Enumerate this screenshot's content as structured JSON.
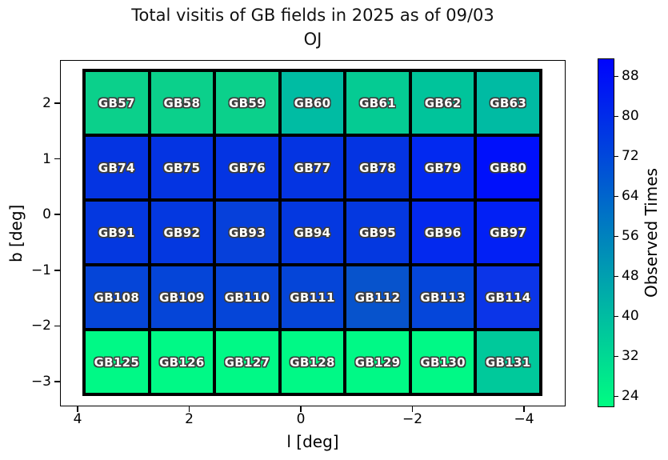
{
  "title": {
    "line1": "Total visitis of GB fields in 2025 as of 09/03",
    "line2": "OJ"
  },
  "chart_data": {
    "type": "heatmap",
    "xlabel": "l [deg]",
    "ylabel": "b [deg]",
    "x_axis": {
      "tick_labels": [
        "4",
        "2",
        "0",
        "−2",
        "−4"
      ],
      "tick_values": [
        4,
        2,
        0,
        -2,
        -4
      ],
      "direction": "reversed (positive l on left)"
    },
    "y_axis": {
      "tick_labels": [
        "2",
        "1",
        "0",
        "−1",
        "−2",
        "−3"
      ],
      "tick_values": [
        2,
        1,
        0,
        -1,
        -2,
        -3
      ]
    },
    "colorbar": {
      "label": "Observed Times",
      "ticks": [
        88,
        80,
        72,
        64,
        56,
        48,
        40,
        32,
        24
      ],
      "vmin": 21.8,
      "vmax": 91.6,
      "colormap": "winter_r",
      "color_low": "#00ff80",
      "color_high": "#0000ff"
    },
    "rows": [
      {
        "cells": [
          {
            "id": "GB57",
            "value": 34,
            "color": "#0bd08b"
          },
          {
            "id": "GB58",
            "value": 34,
            "color": "#0bd08b"
          },
          {
            "id": "GB59",
            "value": 34,
            "color": "#0bd08b"
          },
          {
            "id": "GB60",
            "value": 40,
            "color": "#00bca3"
          },
          {
            "id": "GB61",
            "value": 36,
            "color": "#05cb93"
          },
          {
            "id": "GB62",
            "value": 38,
            "color": "#00c49b"
          },
          {
            "id": "GB63",
            "value": 40,
            "color": "#00bba3"
          }
        ]
      },
      {
        "cells": [
          {
            "id": "GB74",
            "value": 78,
            "color": "#0434e2"
          },
          {
            "id": "GB75",
            "value": 78,
            "color": "#0434e2"
          },
          {
            "id": "GB76",
            "value": 78,
            "color": "#0434e2"
          },
          {
            "id": "GB77",
            "value": 78,
            "color": "#0434e2"
          },
          {
            "id": "GB78",
            "value": 78,
            "color": "#0434e2"
          },
          {
            "id": "GB79",
            "value": 81,
            "color": "#0229f0"
          },
          {
            "id": "GB80",
            "value": 89,
            "color": "#0010fb"
          }
        ]
      },
      {
        "cells": [
          {
            "id": "GB91",
            "value": 77,
            "color": "#0438e0"
          },
          {
            "id": "GB92",
            "value": 77,
            "color": "#0438e0"
          },
          {
            "id": "GB93",
            "value": 75,
            "color": "#0640da"
          },
          {
            "id": "GB94",
            "value": 77,
            "color": "#0438e0"
          },
          {
            "id": "GB95",
            "value": 77,
            "color": "#0438e0"
          },
          {
            "id": "GB96",
            "value": 81,
            "color": "#0329ee"
          },
          {
            "id": "GB97",
            "value": 84,
            "color": "#0220f5"
          }
        ]
      },
      {
        "cells": [
          {
            "id": "GB108",
            "value": 74,
            "color": "#0545d8"
          },
          {
            "id": "GB109",
            "value": 74,
            "color": "#0545d8"
          },
          {
            "id": "GB110",
            "value": 74,
            "color": "#0545d8"
          },
          {
            "id": "GB111",
            "value": 74,
            "color": "#0545d8"
          },
          {
            "id": "GB112",
            "value": 71,
            "color": "#0753cc"
          },
          {
            "id": "GB113",
            "value": 73,
            "color": "#0546da"
          },
          {
            "id": "GB114",
            "value": 79,
            "color": "#0b35e8"
          }
        ]
      },
      {
        "cells": [
          {
            "id": "GB125",
            "value": 23,
            "color": "#00f986"
          },
          {
            "id": "GB126",
            "value": 23,
            "color": "#00f986"
          },
          {
            "id": "GB127",
            "value": 23,
            "color": "#00f986"
          },
          {
            "id": "GB128",
            "value": 23,
            "color": "#00f986"
          },
          {
            "id": "GB129",
            "value": 23,
            "color": "#00f986"
          },
          {
            "id": "GB130",
            "value": 23,
            "color": "#00f986"
          },
          {
            "id": "GB131",
            "value": 38,
            "color": "#00c99b"
          }
        ]
      }
    ]
  }
}
